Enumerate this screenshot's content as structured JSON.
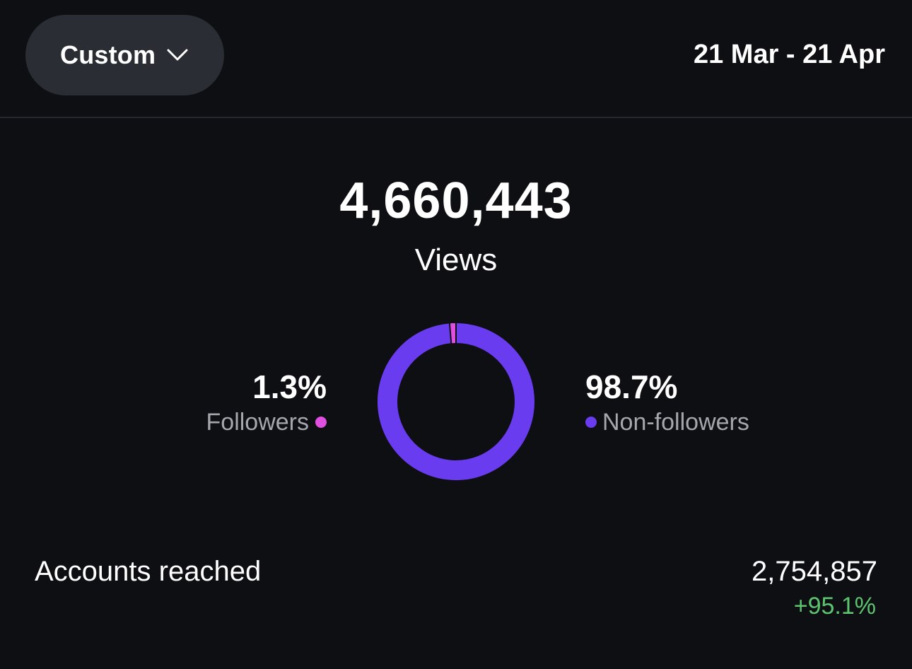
{
  "header": {
    "range_selector_label": "Custom",
    "date_range": "21 Mar - 21 Apr"
  },
  "summary": {
    "total": "4,660,443",
    "metric_label": "Views"
  },
  "breakdown": {
    "followers": {
      "percent_text": "1.3%",
      "label": "Followers",
      "value": 1.3,
      "color": "#e04fe0"
    },
    "non_followers": {
      "percent_text": "98.7%",
      "label": "Non-followers",
      "value": 98.7,
      "color": "#6a3cf0"
    }
  },
  "reach": {
    "label": "Accounts reached",
    "value": "2,754,857",
    "change": "+95.1%",
    "change_color": "#5cc46f"
  },
  "icons": {
    "dropdown": "chevron-down-icon"
  }
}
